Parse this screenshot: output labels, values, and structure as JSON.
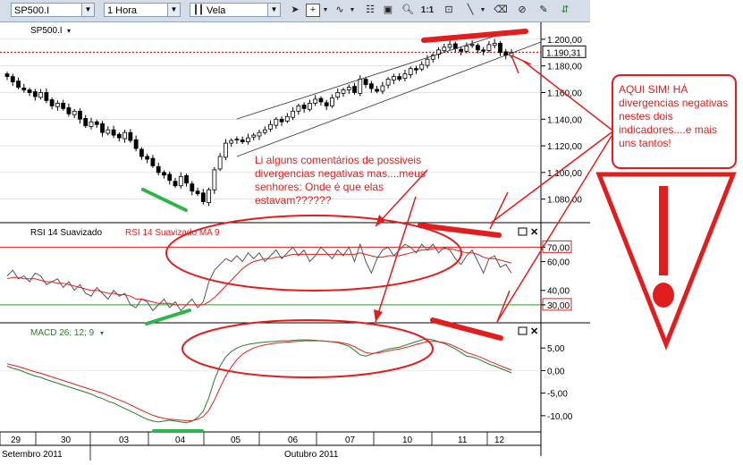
{
  "toolbar": {
    "symbol": "SP500.I",
    "interval": "1 Hora",
    "chart_style": "Vela",
    "icons": [
      "cursor-icon",
      "crosshair-icon",
      "indicator-icon",
      "properties-icon",
      "zoom-icon",
      "scale-1-1-icon",
      "lock-icon",
      "line-tool-icon",
      "eraser-icon",
      "trash-icon",
      "text-tool-icon",
      "candles-icon"
    ],
    "zoom_label": "1:1"
  },
  "panels": {
    "price_label": "SP500.I",
    "rsi_label": "RSI 14 Suavizado",
    "rsi_ma_label": "RSI 14 Suavizado MA 9",
    "macd_label": "MACD 26; 12; 9"
  },
  "annotations": {
    "comment_text": "Li alguns comentários de possiveis divergencias negativas mas....meus senhores: Onde é que elas estavam??????",
    "callout_text": "AQUI SIM! HÁ divergencias negativas nestes dois indicadores....e mais uns tantos!",
    "warning_symbol": "!"
  },
  "colors": {
    "annotation": "#e21d1d",
    "bullish": "#2bb54a",
    "rsi": "#555555",
    "rsi_ma": "#e02020",
    "macd": "#2a7a2a",
    "signal": "#e02020",
    "toolbar": "#d4dde8",
    "price_marker": "#c00000"
  },
  "chart_data": [
    {
      "type": "candlestick",
      "name": "SP500.I",
      "ylim": [
        1065,
        1210
      ],
      "y_ticks": [
        "1.200,00",
        "1.180,00",
        "1.160,00",
        "1.140,00",
        "1.120,00",
        "1.100,00",
        "1.080,00"
      ],
      "y_tick_values": [
        1200,
        1180,
        1160,
        1140,
        1120,
        1100,
        1080
      ],
      "last_price": 1190.31,
      "last_price_label": "1.190,31",
      "close_series": [
        1172,
        1168,
        1164,
        1162,
        1160,
        1157,
        1160,
        1154,
        1150,
        1152,
        1148,
        1144,
        1146,
        1140,
        1135,
        1138,
        1136,
        1130,
        1132,
        1128,
        1126,
        1130,
        1124,
        1118,
        1112,
        1110,
        1105,
        1100,
        1098,
        1094,
        1090,
        1097,
        1092,
        1086,
        1084,
        1078,
        1087,
        1102,
        1112,
        1122,
        1124,
        1125,
        1123,
        1126,
        1128,
        1130,
        1132,
        1136,
        1140,
        1138,
        1142,
        1146,
        1150,
        1148,
        1152,
        1155,
        1153,
        1150,
        1156,
        1160,
        1162,
        1164,
        1160,
        1170,
        1166,
        1163,
        1161,
        1165,
        1170,
        1172,
        1170,
        1174,
        1178,
        1177,
        1181,
        1185,
        1188,
        1192,
        1194,
        1196,
        1193,
        1191,
        1195,
        1196,
        1192,
        1191,
        1196,
        1197,
        1190,
        1188,
        1190
      ]
    },
    {
      "type": "line",
      "name": "RSI",
      "ylim": [
        20,
        82
      ],
      "y_ticks": [
        "70,00",
        "60,00",
        "40,00",
        "30,00"
      ],
      "y_tick_values": [
        70,
        60,
        40,
        30
      ],
      "series": [
        {
          "name": "RSI 14 Suavizado",
          "values": [
            50,
            54,
            48,
            50,
            46,
            52,
            50,
            44,
            46,
            48,
            42,
            46,
            40,
            44,
            38,
            36,
            42,
            38,
            34,
            40,
            36,
            38,
            30,
            28,
            34,
            32,
            26,
            30,
            34,
            28,
            32,
            26,
            30,
            34,
            28,
            32,
            46,
            54,
            58,
            62,
            60,
            64,
            60,
            66,
            62,
            66,
            60,
            64,
            68,
            62,
            66,
            70,
            64,
            68,
            60,
            64,
            70,
            66,
            62,
            68,
            64,
            70,
            60,
            72,
            60,
            52,
            62,
            68,
            70,
            64,
            68,
            72,
            70,
            66,
            72,
            68,
            72,
            66,
            70,
            68,
            62,
            58,
            64,
            68,
            60,
            52,
            62,
            64,
            56,
            58,
            52
          ]
        },
        {
          "name": "RSI 14 Suavizado MA 9",
          "values": [
            48,
            49,
            49,
            48,
            48,
            48,
            47,
            46,
            46,
            45,
            45,
            44,
            43,
            42,
            41,
            40,
            40,
            39,
            38,
            38,
            37,
            37,
            36,
            34,
            34,
            33,
            32,
            31,
            31,
            31,
            30,
            30,
            30,
            30,
            30,
            30,
            32,
            35,
            39,
            43,
            47,
            51,
            55,
            58,
            60,
            61,
            62,
            62,
            63,
            63,
            64,
            65,
            65,
            65,
            65,
            65,
            65,
            65,
            65,
            65,
            65,
            65,
            65,
            66,
            65,
            64,
            63,
            63,
            64,
            64,
            64,
            65,
            66,
            67,
            68,
            68,
            69,
            69,
            69,
            69,
            68,
            67,
            66,
            66,
            65,
            63,
            62,
            62,
            61,
            60,
            59
          ]
        }
      ]
    },
    {
      "type": "line",
      "name": "MACD",
      "ylim": [
        -13,
        9
      ],
      "y_ticks": [
        "5,00",
        "0,00",
        "-5,00",
        "-10,00"
      ],
      "y_tick_values": [
        5,
        0,
        -5,
        -10
      ],
      "series": [
        {
          "name": "MACD",
          "values": [
            1.0,
            0.5,
            0.2,
            -0.3,
            -0.8,
            -1.2,
            -1.5,
            -2.0,
            -2.4,
            -2.8,
            -3.2,
            -3.6,
            -4.0,
            -4.4,
            -4.8,
            -5.2,
            -5.8,
            -6.2,
            -6.8,
            -7.2,
            -7.8,
            -8.4,
            -9.0,
            -9.6,
            -10.2,
            -10.8,
            -11.2,
            -11.4,
            -11.2,
            -11.0,
            -11.2,
            -11.4,
            -11.6,
            -11.2,
            -10.4,
            -9.0,
            -6.0,
            -2.0,
            1.0,
            3.0,
            4.2,
            5.0,
            5.5,
            5.8,
            6.0,
            6.2,
            6.3,
            6.4,
            6.5,
            6.6,
            6.6,
            6.7,
            6.8,
            6.8,
            6.8,
            6.7,
            6.6,
            6.5,
            6.4,
            6.2,
            5.8,
            5.4,
            4.5,
            3.5,
            3.2,
            3.6,
            4.0,
            4.4,
            4.8,
            5.0,
            5.2,
            5.6,
            6.0,
            6.4,
            6.8,
            7.0,
            6.8,
            6.4,
            6.0,
            5.4,
            4.8,
            4.0,
            3.2,
            3.0,
            2.6,
            2.0,
            1.4,
            1.0,
            0.5,
            0.0,
            -0.5
          ]
        },
        {
          "name": "Signal",
          "values": [
            1.5,
            1.2,
            0.9,
            0.5,
            0.1,
            -0.3,
            -0.6,
            -1.0,
            -1.4,
            -1.8,
            -2.2,
            -2.6,
            -3.0,
            -3.4,
            -3.8,
            -4.2,
            -4.6,
            -5.0,
            -5.5,
            -6.0,
            -6.5,
            -7.0,
            -7.6,
            -8.2,
            -8.8,
            -9.4,
            -9.9,
            -10.3,
            -10.6,
            -10.8,
            -10.9,
            -11.0,
            -11.1,
            -11.1,
            -10.8,
            -10.2,
            -8.8,
            -6.5,
            -3.8,
            -1.2,
            0.8,
            2.4,
            3.6,
            4.4,
            5.0,
            5.4,
            5.7,
            5.9,
            6.1,
            6.2,
            6.3,
            6.4,
            6.5,
            6.6,
            6.6,
            6.6,
            6.6,
            6.5,
            6.4,
            6.3,
            6.1,
            5.8,
            5.3,
            4.6,
            4.0,
            3.8,
            3.9,
            4.1,
            4.4,
            4.6,
            4.8,
            5.1,
            5.4,
            5.8,
            6.1,
            6.4,
            6.5,
            6.4,
            6.2,
            5.8,
            5.3,
            4.7,
            4.0,
            3.6,
            3.2,
            2.7,
            2.1,
            1.6,
            1.1,
            0.6,
            0.1
          ]
        }
      ]
    }
  ],
  "x_axis": {
    "day_labels": [
      "29",
      "30",
      "03",
      "04",
      "05",
      "06",
      "07",
      "10",
      "11",
      "12"
    ],
    "month_labels": [
      "Setembro 2011",
      "Outubro 2011"
    ]
  }
}
